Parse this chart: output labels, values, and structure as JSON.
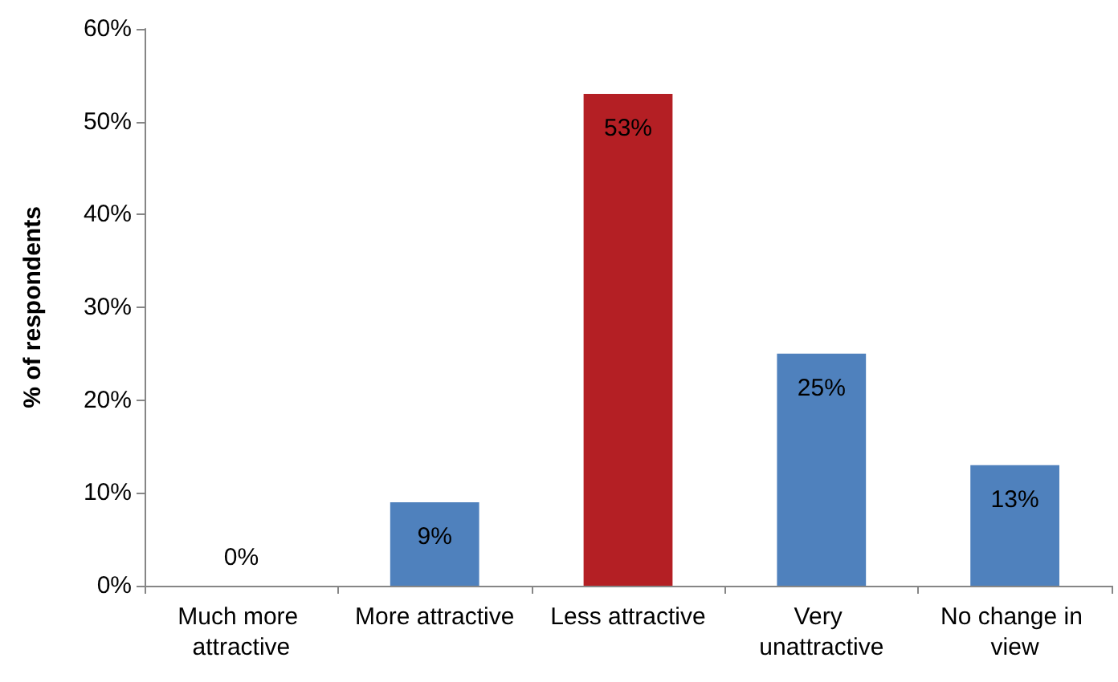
{
  "chart_data": {
    "type": "bar",
    "ylabel": "% of respondents",
    "categories": [
      "Much more attractive",
      "More attractive",
      "Less attractive",
      "Very unattractive",
      "No change in view"
    ],
    "values": [
      0,
      9,
      53,
      25,
      13
    ],
    "colors": [
      "#4f81bd",
      "#4f81bd",
      "#b41f24",
      "#4f81bd",
      "#4f81bd"
    ],
    "value_labels": [
      "0%",
      "9%",
      "53%",
      "25%",
      "13%"
    ],
    "ylim": [
      0,
      60
    ],
    "yticks": [
      {
        "value": 0,
        "label": "0%"
      },
      {
        "value": 10,
        "label": "10%"
      },
      {
        "value": 20,
        "label": "20%"
      },
      {
        "value": 30,
        "label": "30%"
      },
      {
        "value": 40,
        "label": "40%"
      },
      {
        "value": 50,
        "label": "50%"
      },
      {
        "value": 60,
        "label": "60%"
      }
    ],
    "grid": false
  }
}
